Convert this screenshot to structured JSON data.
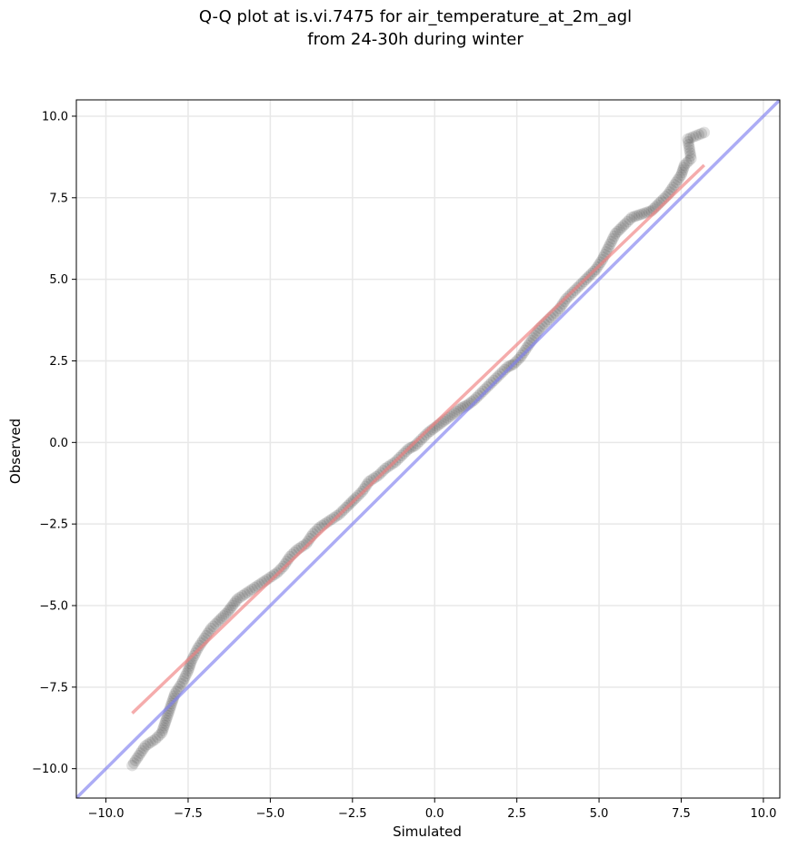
{
  "chart_data": {
    "type": "scatter",
    "title": "Q-Q plot at is.vi.7475 for air_temperature_at_2m_agl",
    "subtitle": "from 24-30h during winter",
    "xlabel": "Simulated",
    "ylabel": "Observed",
    "xlim": [
      -10.9,
      10.5
    ],
    "ylim": [
      -10.9,
      10.5
    ],
    "xticks": [
      -10.0,
      -7.5,
      -5.0,
      -2.5,
      0.0,
      2.5,
      5.0,
      7.5,
      10.0
    ],
    "yticks": [
      -10.0,
      -7.5,
      -5.0,
      -2.5,
      0.0,
      2.5,
      5.0,
      7.5,
      10.0
    ],
    "xtick_labels": [
      "−10.0",
      "−7.5",
      "−5.0",
      "−2.5",
      "0.0",
      "2.5",
      "5.0",
      "7.5",
      "10.0"
    ],
    "ytick_labels": [
      "−10.0",
      "−7.5",
      "−5.0",
      "−2.5",
      "0.0",
      "2.5",
      "5.0",
      "7.5",
      "10.0"
    ],
    "grid": true,
    "colors": {
      "points": "#1a1a1a",
      "fit_line": "#f08080",
      "identity_line": "#8080f0",
      "grid": "#e8e8e8"
    },
    "series": [
      {
        "kind": "quantile_points",
        "points": [
          [
            -9.2,
            -9.9
          ],
          [
            -9.0,
            -9.6
          ],
          [
            -8.8,
            -9.3
          ],
          [
            -8.5,
            -9.1
          ],
          [
            -8.3,
            -8.9
          ],
          [
            -8.2,
            -8.6
          ],
          [
            -8.1,
            -8.3
          ],
          [
            -8.0,
            -8.0
          ],
          [
            -7.9,
            -7.7
          ],
          [
            -7.7,
            -7.4
          ],
          [
            -7.5,
            -7.0
          ],
          [
            -7.4,
            -6.7
          ],
          [
            -7.2,
            -6.3
          ],
          [
            -7.0,
            -6.0
          ],
          [
            -6.8,
            -5.7
          ],
          [
            -6.6,
            -5.5
          ],
          [
            -6.3,
            -5.2
          ],
          [
            -6.0,
            -4.8
          ],
          [
            -5.7,
            -4.6
          ],
          [
            -5.4,
            -4.4
          ],
          [
            -5.1,
            -4.2
          ],
          [
            -4.8,
            -4.0
          ],
          [
            -4.6,
            -3.8
          ],
          [
            -4.4,
            -3.5
          ],
          [
            -4.2,
            -3.3
          ],
          [
            -3.9,
            -3.1
          ],
          [
            -3.7,
            -2.8
          ],
          [
            -3.5,
            -2.6
          ],
          [
            -3.2,
            -2.4
          ],
          [
            -2.9,
            -2.2
          ],
          [
            -2.7,
            -2.0
          ],
          [
            -2.4,
            -1.7
          ],
          [
            -2.2,
            -1.5
          ],
          [
            -2.0,
            -1.2
          ],
          [
            -1.7,
            -1.0
          ],
          [
            -1.5,
            -0.8
          ],
          [
            -1.2,
            -0.6
          ],
          [
            -1.0,
            -0.4
          ],
          [
            -0.8,
            -0.2
          ],
          [
            -0.6,
            -0.1
          ],
          [
            -0.4,
            0.1
          ],
          [
            -0.2,
            0.3
          ],
          [
            0.0,
            0.45
          ],
          [
            0.2,
            0.6
          ],
          [
            0.4,
            0.75
          ],
          [
            0.6,
            0.9
          ],
          [
            0.8,
            1.05
          ],
          [
            1.0,
            1.15
          ],
          [
            1.2,
            1.3
          ],
          [
            1.4,
            1.5
          ],
          [
            1.6,
            1.7
          ],
          [
            1.8,
            1.9
          ],
          [
            2.0,
            2.1
          ],
          [
            2.2,
            2.3
          ],
          [
            2.4,
            2.4
          ],
          [
            2.6,
            2.6
          ],
          [
            2.8,
            2.9
          ],
          [
            3.0,
            3.2
          ],
          [
            3.2,
            3.5
          ],
          [
            3.4,
            3.7
          ],
          [
            3.6,
            3.9
          ],
          [
            3.8,
            4.1
          ],
          [
            4.0,
            4.4
          ],
          [
            4.2,
            4.6
          ],
          [
            4.4,
            4.8
          ],
          [
            4.6,
            5.0
          ],
          [
            4.9,
            5.3
          ],
          [
            5.1,
            5.6
          ],
          [
            5.3,
            6.0
          ],
          [
            5.5,
            6.4
          ],
          [
            5.8,
            6.7
          ],
          [
            6.0,
            6.9
          ],
          [
            6.3,
            7.0
          ],
          [
            6.6,
            7.1
          ],
          [
            6.9,
            7.4
          ],
          [
            7.1,
            7.6
          ],
          [
            7.3,
            7.9
          ],
          [
            7.5,
            8.2
          ],
          [
            7.6,
            8.5
          ],
          [
            7.8,
            8.7
          ],
          [
            7.7,
            9.3
          ],
          [
            8.2,
            9.5
          ]
        ]
      },
      {
        "kind": "fit_line",
        "x": [
          -9.2,
          8.2
        ],
        "y": [
          -8.3,
          8.5
        ]
      },
      {
        "kind": "identity_line",
        "x": [
          -10.9,
          10.5
        ],
        "y": [
          -10.9,
          10.5
        ]
      }
    ]
  }
}
